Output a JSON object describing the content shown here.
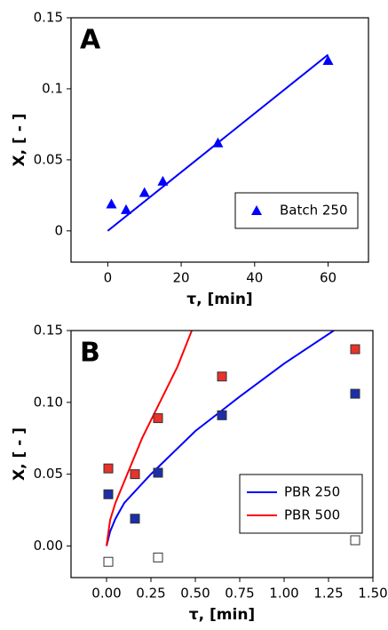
{
  "chart_data": [
    {
      "type": "scatter",
      "panel_label": "A",
      "xlabel": "τ, [min]",
      "ylabel": "X, [ - ]",
      "xlim": [
        -10,
        71
      ],
      "xticks": [
        0,
        20,
        40,
        60
      ],
      "ylim": [
        -0.022,
        0.15
      ],
      "yticks": [
        0,
        0.05,
        0.1,
        0.15
      ],
      "legend": "lower right",
      "series": [
        {
          "name": "Batch 250",
          "color": "#0000ff",
          "style": "marker",
          "marker": "triangle",
          "x": [
            1,
            5,
            10,
            15,
            30,
            60
          ],
          "values": [
            0.019,
            0.015,
            0.027,
            0.035,
            0.062,
            0.12
          ]
        },
        {
          "color": "#0000ff",
          "style": "line",
          "x": [
            0,
            60
          ],
          "values": [
            0,
            0.124
          ]
        }
      ]
    },
    {
      "type": "scatter",
      "panel_label": "B",
      "xlabel": "τ, [min]",
      "ylabel": "X, [ - ]",
      "xlim": [
        -0.2,
        1.5
      ],
      "xticks": [
        {
          "value": 0,
          "label": "0.00"
        },
        {
          "value": 0.25,
          "label": "0.25"
        },
        {
          "value": 0.5,
          "label": "0.50"
        },
        {
          "value": 0.75,
          "label": "0.75"
        },
        {
          "value": 1,
          "label": "1.00"
        },
        {
          "value": 1.25,
          "label": "1.25"
        },
        {
          "value": 1.5,
          "label": "1.50"
        }
      ],
      "ylim": [
        -0.022,
        0.15
      ],
      "yticks": [
        {
          "value": 0,
          "label": "0.00"
        },
        {
          "value": 0.05,
          "label": "0.05"
        },
        {
          "value": 0.1,
          "label": "0.10"
        },
        {
          "value": 0.15,
          "label": "0.15"
        }
      ],
      "legend": "lower right",
      "series": [
        {
          "name": "PBR 250",
          "color": "#0000ff",
          "style": "line",
          "x": [
            0,
            0.02,
            0.05,
            0.1,
            0.25,
            0.5,
            0.75,
            1.0,
            1.28
          ],
          "values": [
            0,
            0.01,
            0.019,
            0.03,
            0.05,
            0.08,
            0.104,
            0.127,
            0.15
          ]
        },
        {
          "name": "PBR 500",
          "color": "#ff0000",
          "style": "line",
          "x": [
            0,
            0.02,
            0.05,
            0.1,
            0.2,
            0.3,
            0.4,
            0.48
          ],
          "values": [
            0,
            0.018,
            0.03,
            0.045,
            0.075,
            0.1,
            0.125,
            0.15
          ]
        },
        {
          "color": "#1c2fa8",
          "style": "marker",
          "marker": "square",
          "x": [
            0.01,
            0.16,
            0.29,
            0.65,
            1.4
          ],
          "values": [
            0.036,
            0.019,
            0.051,
            0.091,
            0.106
          ]
        },
        {
          "color": "#e8322a",
          "style": "marker",
          "marker": "square",
          "x": [
            0.01,
            0.16,
            0.29,
            0.65,
            1.4
          ],
          "values": [
            0.054,
            0.05,
            0.089,
            0.118,
            0.137
          ]
        },
        {
          "color": "#ffffff",
          "style": "marker",
          "marker": "square",
          "x": [
            0.01,
            0.29,
            1.4
          ],
          "values": [
            -0.011,
            -0.008,
            0.004
          ]
        }
      ]
    }
  ]
}
